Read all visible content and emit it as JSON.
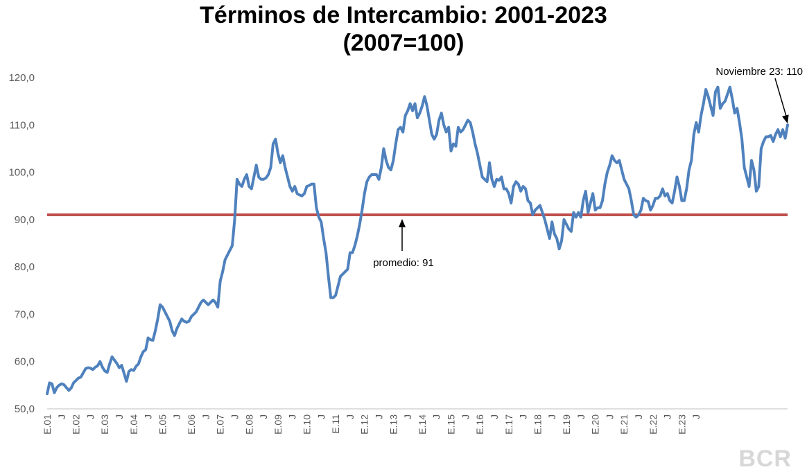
{
  "chart_data": {
    "type": "line",
    "title_line1": "Términos de Intercambio: 2001-2023",
    "title_line2": "(2007=100)",
    "xlabel": "",
    "ylabel": "",
    "ylim": [
      50,
      120
    ],
    "yticks": [
      "50,0",
      "60,0",
      "70,0",
      "80,0",
      "90,0",
      "100,0",
      "110,0",
      "120,0"
    ],
    "xticks": [
      "E.01",
      "J",
      "E.02",
      "J",
      "E.03",
      "J",
      "E.04",
      "J",
      "E.05",
      "J",
      "E.06",
      "J",
      "E.07",
      "J",
      "E.08",
      "J",
      "E.09",
      "J",
      "E.10",
      "J",
      "E.11",
      "J",
      "E.12",
      "J",
      "E.13",
      "J",
      "E.14",
      "J",
      "E.15",
      "J",
      "E.16",
      "J",
      "E.17",
      "J",
      "E.18",
      "J",
      "E.19",
      "J",
      "E.20",
      "J",
      "E.21",
      "J",
      "E.22",
      "J",
      "E.23",
      "J"
    ],
    "grid": false,
    "legend": "none",
    "x_start": "2001-01",
    "x_end": "2023-11",
    "line_color": "#4f81bd",
    "average_line": {
      "value": 91,
      "color": "#c0504d",
      "label": "promedio: 91"
    },
    "annotation": {
      "label": "Noviembre 23: 110",
      "x": "2023-11",
      "y": 110
    },
    "series": [
      {
        "values": [
          53.2,
          55.5,
          55.3,
          53.4,
          54.5,
          55,
          55.3,
          55.1,
          54.5,
          53.9,
          54.4,
          55.5,
          56,
          56.5,
          56.7,
          57.6,
          58.5,
          58.7,
          58.6,
          58.3,
          58.8,
          59.1,
          60,
          58.8,
          58,
          57.7,
          59.5,
          61,
          60.3,
          59.6,
          58.7,
          59.2,
          57.5,
          55.8,
          57.9,
          58.3,
          58.1,
          59,
          59.5,
          61,
          62.1,
          62.5,
          65,
          64.6,
          64.5,
          66.5,
          69,
          72,
          71.5,
          70.5,
          69.5,
          68.5,
          66.5,
          65.5,
          67,
          68,
          69,
          68.5,
          68.3,
          68.5,
          69.5,
          70,
          70.5,
          71.5,
          72.5,
          73,
          72.5,
          72,
          72.5,
          73,
          72.5,
          71.5,
          77,
          79,
          81.5,
          82.5,
          83.5,
          84.5,
          90,
          98.5,
          97.5,
          97,
          98.5,
          99.5,
          97,
          96.5,
          99,
          101.5,
          99,
          98.5,
          98.5,
          98.8,
          99.5,
          101,
          106,
          107,
          104,
          102,
          103.5,
          101,
          99,
          97,
          96,
          97,
          95.5,
          95.2,
          95,
          95.5,
          97,
          97.2,
          97.5,
          97.5,
          92.5,
          90.5,
          89.5,
          86,
          83,
          78,
          73.5,
          73.5,
          74,
          76,
          78,
          78.5,
          79,
          79.5,
          83,
          83,
          84.5,
          86.5,
          89,
          92,
          95.5,
          98,
          99,
          99.5,
          99.5,
          99.5,
          98.5,
          101,
          105,
          102.5,
          101,
          100.5,
          102.5,
          106,
          109,
          109.5,
          108.5,
          112,
          113,
          114.5,
          113,
          114.5,
          111.5,
          112.5,
          114,
          116,
          114,
          111,
          108,
          107,
          108,
          111,
          112.5,
          110,
          108.5,
          109.5,
          104.5,
          106,
          105.5,
          109.5,
          108.5,
          109,
          110,
          111,
          110.5,
          108.5,
          106,
          104,
          101.5,
          99,
          98.5,
          98,
          102,
          98.5,
          97,
          98.5,
          98.3,
          99,
          96.5,
          96.5,
          95.5,
          93.5,
          97,
          98,
          97.5,
          96,
          97,
          96.5,
          94,
          93.5,
          91,
          92,
          92.5,
          93,
          91.5,
          90,
          88,
          86,
          89.5,
          87,
          86,
          83.8,
          85.5,
          90,
          89,
          88,
          87.5,
          91.5,
          90.5,
          91.5,
          90.5,
          94,
          96,
          91.5,
          93.5,
          95.5,
          92,
          92.5,
          92.5,
          94,
          97.5,
          100,
          101.5,
          103.5,
          102.5,
          102,
          102.5,
          100.5,
          98.5,
          97.5,
          96.5,
          94,
          91,
          90.5,
          91,
          92,
          94.5,
          94,
          93.8,
          92,
          93,
          94.5,
          94.5,
          95,
          96.5,
          95,
          95.5,
          94,
          93.5,
          96,
          99,
          97,
          94,
          94,
          96.5,
          100.5,
          102.5,
          108,
          110.5,
          108.5,
          112,
          114.5,
          117.5,
          116,
          114,
          112,
          117,
          118,
          113.5,
          114.5,
          115,
          116.5,
          118,
          115.5,
          112.5,
          113.5,
          110.5,
          107,
          101,
          99,
          97,
          102.5,
          100.5,
          96,
          97,
          105,
          106.5,
          107.5,
          107.5,
          107.8,
          106.5,
          108,
          109,
          107.5,
          109,
          107.2,
          110
        ]
      }
    ]
  },
  "watermark": "BCR"
}
